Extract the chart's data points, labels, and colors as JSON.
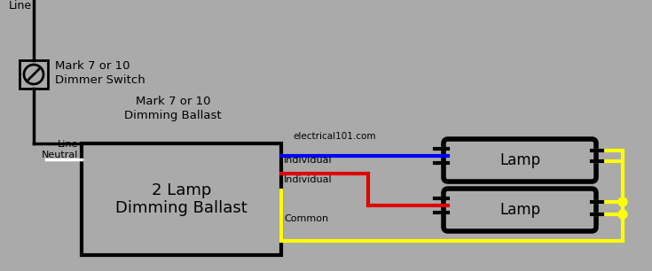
{
  "bg_color": "#aaaaaa",
  "fig_w": 7.35,
  "fig_h": 3.06,
  "dpi": 100,
  "colors": {
    "black": "#000000",
    "white": "#ffffff",
    "blue": "#0000ff",
    "red": "#dd0000",
    "yellow": "#ffff00",
    "bg": "#aaaaaa"
  },
  "text": {
    "line_top": "Line",
    "switch1": "Mark 7 or 10",
    "switch2": "Dimmer Switch",
    "ballast1": "Mark 7 or 10",
    "ballast2": "Dimming Ballast",
    "line_box": "Line",
    "neutral_box": "Neutral",
    "box1": "2 Lamp",
    "box2": "Dimming Ballast",
    "website": "electrical101.com",
    "individual1": "Individual",
    "individual2": "Individual",
    "common": "Common",
    "lamp": "Lamp"
  }
}
